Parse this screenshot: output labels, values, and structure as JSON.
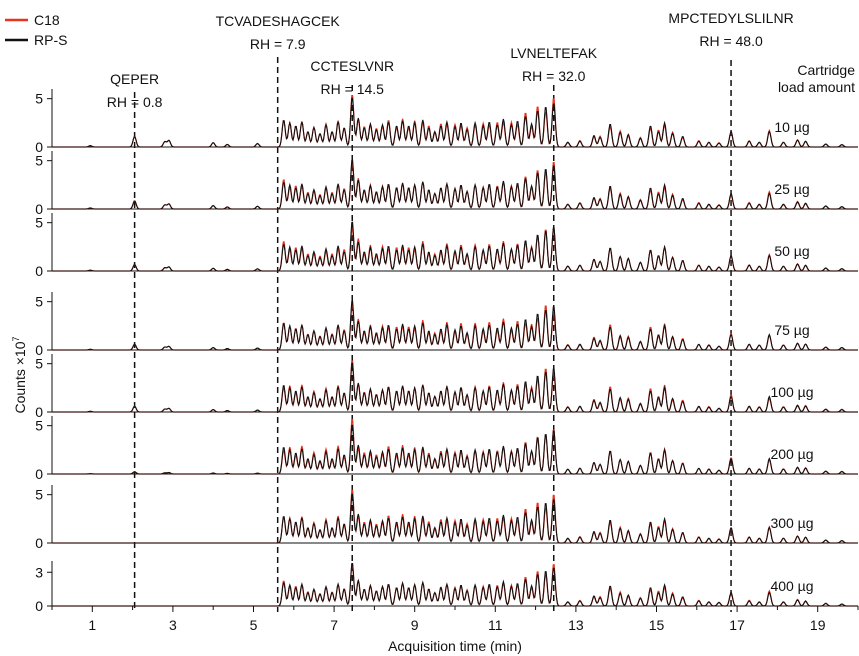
{
  "chart_data": {
    "type": "line",
    "title": "",
    "xlabel": "Acquisition time (min)",
    "ylabel": "Counts ×10",
    "ylabel_exponent": "7",
    "xlim": [
      0,
      20
    ],
    "x_ticks": [
      1,
      3,
      5,
      7,
      9,
      11,
      13,
      15,
      17,
      19
    ],
    "legend_position": "top-left",
    "series": [
      {
        "name": "C18",
        "color": "#e8321e"
      },
      {
        "name": "RP-S",
        "color": "#111111"
      }
    ],
    "load_header": [
      "Cartridge",
      "load amount"
    ],
    "panels": [
      {
        "load": "10 µg",
        "ylim": [
          0,
          6
        ],
        "y_ticks": [
          0,
          5
        ],
        "early_scale": 0.45,
        "peptide_start": 5.6
      },
      {
        "load": "25 µg",
        "ylim": [
          0,
          6
        ],
        "y_ticks": [
          0,
          5
        ],
        "early_scale": 0.35,
        "peptide_start": 5.6
      },
      {
        "load": "50 µg",
        "ylim": [
          0,
          6
        ],
        "y_ticks": [
          0,
          5
        ],
        "early_scale": 0.28,
        "peptide_start": 5.6
      },
      {
        "load": "75 µg",
        "ylim": [
          0,
          6
        ],
        "y_ticks": [
          0,
          5
        ],
        "early_scale": 0.25,
        "peptide_start": 5.6
      },
      {
        "load": "100 µg",
        "ylim": [
          0,
          6
        ],
        "y_ticks": [
          0,
          5
        ],
        "early_scale": 0.25,
        "peptide_start": 5.6
      },
      {
        "load": "200 µg",
        "ylim": [
          0,
          6
        ],
        "y_ticks": [
          0,
          5
        ],
        "early_scale": 0.1,
        "peptide_start": 5.6
      },
      {
        "load": "300 µg",
        "ylim": [
          0,
          6
        ],
        "y_ticks": [
          0,
          5
        ],
        "early_scale": 0.0,
        "peptide_start": 5.6
      },
      {
        "load": "400 µg",
        "ylim": [
          0,
          4
        ],
        "y_ticks": [
          0,
          3
        ],
        "early_scale": 0.0,
        "peptide_start": 5.6
      }
    ],
    "annotations": [
      {
        "peptide": "QEPER",
        "rh": "RH = 0.8",
        "x": 2.05
      },
      {
        "peptide": "TCVADESHAGCEK",
        "rh": "RH = 7.9",
        "x": 5.6
      },
      {
        "peptide": "CCTESLVNR",
        "rh": "RH = 14.5",
        "x": 7.45
      },
      {
        "peptide": "LVNELTEFAK",
        "rh": "RH = 32.0",
        "x": 12.45
      },
      {
        "peptide": "MPCTEDYLSLILNR",
        "rh": "RH = 48.0",
        "x": 16.85
      }
    ],
    "early_peaks": [
      [
        2.05,
        2.4
      ],
      [
        2.8,
        1.2
      ],
      [
        2.9,
        1.5
      ],
      [
        4.0,
        1.0
      ],
      [
        4.35,
        0.6
      ],
      [
        5.1,
        0.8
      ],
      [
        0.95,
        0.3
      ]
    ],
    "late_peaks": [
      [
        5.75,
        2.8
      ],
      [
        5.9,
        2.5
      ],
      [
        6.05,
        2.2
      ],
      [
        6.2,
        2.6
      ],
      [
        6.35,
        1.6
      ],
      [
        6.5,
        2.0
      ],
      [
        6.65,
        1.4
      ],
      [
        6.8,
        2.3
      ],
      [
        6.95,
        1.6
      ],
      [
        7.1,
        2.6
      ],
      [
        7.25,
        2.0
      ],
      [
        7.45,
        5.2
      ],
      [
        7.6,
        3.0
      ],
      [
        7.75,
        2.0
      ],
      [
        7.9,
        2.4
      ],
      [
        8.05,
        1.8
      ],
      [
        8.2,
        2.3
      ],
      [
        8.35,
        2.6
      ],
      [
        8.55,
        2.2
      ],
      [
        8.7,
        2.7
      ],
      [
        8.85,
        2.2
      ],
      [
        9.0,
        2.5
      ],
      [
        9.2,
        2.8
      ],
      [
        9.35,
        2.0
      ],
      [
        9.5,
        1.6
      ],
      [
        9.65,
        2.2
      ],
      [
        9.8,
        2.6
      ],
      [
        10.0,
        2.1
      ],
      [
        10.15,
        2.5
      ],
      [
        10.3,
        1.8
      ],
      [
        10.5,
        2.5
      ],
      [
        10.7,
        2.2
      ],
      [
        10.85,
        2.6
      ],
      [
        11.05,
        2.3
      ],
      [
        11.2,
        2.9
      ],
      [
        11.4,
        2.3
      ],
      [
        11.55,
        2.7
      ],
      [
        11.75,
        3.2
      ],
      [
        11.9,
        2.4
      ],
      [
        12.05,
        3.8
      ],
      [
        12.25,
        4.2
      ],
      [
        12.45,
        4.6
      ],
      [
        12.8,
        0.5
      ],
      [
        13.1,
        0.6
      ],
      [
        13.45,
        1.2
      ],
      [
        13.6,
        1.0
      ],
      [
        13.85,
        2.4
      ],
      [
        14.1,
        1.5
      ],
      [
        14.3,
        1.3
      ],
      [
        14.6,
        0.9
      ],
      [
        14.85,
        2.2
      ],
      [
        15.05,
        1.6
      ],
      [
        15.2,
        2.5
      ],
      [
        15.4,
        1.4
      ],
      [
        15.65,
        1.1
      ],
      [
        16.05,
        0.6
      ],
      [
        16.3,
        0.5
      ],
      [
        16.55,
        0.4
      ],
      [
        16.85,
        1.6
      ],
      [
        17.3,
        0.6
      ],
      [
        17.55,
        0.5
      ],
      [
        17.8,
        1.6
      ],
      [
        18.15,
        0.5
      ],
      [
        18.5,
        0.7
      ],
      [
        18.7,
        0.6
      ],
      [
        19.2,
        0.3
      ],
      [
        19.6,
        0.25
      ]
    ],
    "grid": false
  }
}
